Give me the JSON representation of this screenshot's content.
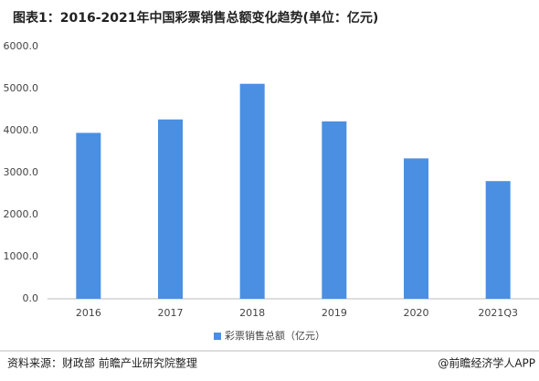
{
  "chart_data": {
    "type": "bar",
    "title": "图表1：2016-2021年中国彩票销售总额变化趋势(单位：亿元)",
    "categories": [
      "2016",
      "2017",
      "2018",
      "2019",
      "2020",
      "2021Q3"
    ],
    "series": [
      {
        "name": "彩票销售总额（亿元）",
        "color": "#4a8fe2",
        "values": [
          3947,
          4267,
          5115,
          4221,
          3340,
          2800
        ]
      }
    ],
    "ylim": [
      0,
      6000
    ],
    "yticks": [
      {
        "value": 0,
        "label": "0.0"
      },
      {
        "value": 1000,
        "label": "1000.0"
      },
      {
        "value": 2000,
        "label": "2000.0"
      },
      {
        "value": 3000,
        "label": "3000.0"
      },
      {
        "value": 4000,
        "label": "4000.0"
      },
      {
        "value": 5000,
        "label": "5000.0"
      },
      {
        "value": 6000,
        "label": "6000.0"
      }
    ],
    "grid": false,
    "legend": "bottom",
    "source": "资料来源：财政部 前瞻产业研究院整理",
    "credit": "@前瞻经济学人APP"
  }
}
